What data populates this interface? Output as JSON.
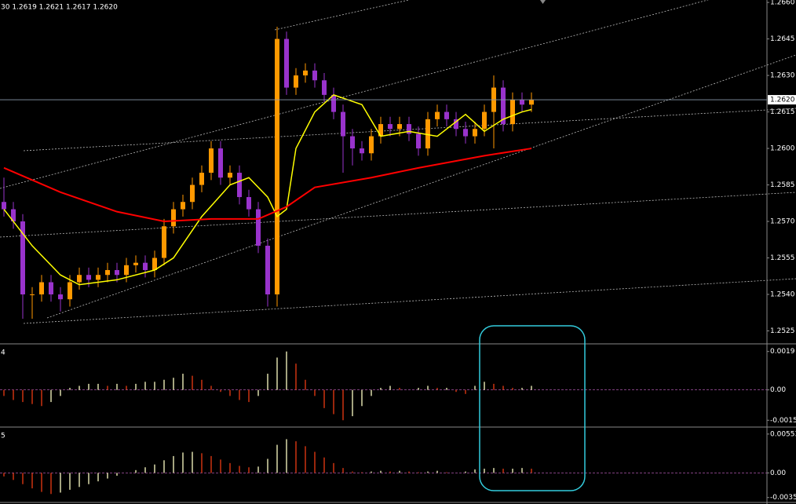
{
  "chart_data": [
    {
      "type": "candlestick",
      "title": "30  1.2619 1.2621 1.2617 1.2620",
      "open": [
        1.2578,
        1.2575,
        1.257,
        1.254,
        1.254,
        1.2545,
        1.254,
        1.2538,
        1.2545,
        1.2548,
        1.2546,
        1.2548,
        1.255,
        1.2548,
        1.2552,
        1.2553,
        1.255,
        1.2555,
        1.2568,
        1.2575,
        1.2578,
        1.2585,
        1.259,
        1.26,
        1.2588,
        1.259,
        1.258,
        1.2575,
        1.256,
        1.254,
        1.2645,
        1.2625,
        1.263,
        1.2632,
        1.2628,
        1.2622,
        1.2615,
        1.2605,
        1.26,
        1.2598,
        1.2605,
        1.261,
        1.2608,
        1.261,
        1.2606,
        1.26,
        1.2612,
        1.2615,
        1.2612,
        1.2608,
        1.2605,
        1.2608,
        1.2615,
        1.2625,
        1.261,
        1.262,
        1.2618
      ],
      "high": [
        1.2588,
        1.2578,
        1.2573,
        1.2543,
        1.2548,
        1.2548,
        1.2543,
        1.2548,
        1.2551,
        1.2551,
        1.2551,
        1.2553,
        1.2553,
        1.2555,
        1.2556,
        1.2556,
        1.2558,
        1.2571,
        1.2578,
        1.2581,
        1.2588,
        1.2593,
        1.2603,
        1.2603,
        1.2593,
        1.2593,
        1.2583,
        1.2578,
        1.2563,
        1.265,
        1.2648,
        1.2633,
        1.2635,
        1.2635,
        1.2631,
        1.2625,
        1.2618,
        1.2608,
        1.2603,
        1.2608,
        1.2613,
        1.2613,
        1.2613,
        1.2613,
        1.2609,
        1.2615,
        1.2618,
        1.2618,
        1.2615,
        1.2611,
        1.2611,
        1.2618,
        1.263,
        1.2628,
        1.2623,
        1.2623,
        1.2623
      ],
      "low": [
        1.2572,
        1.2567,
        1.253,
        1.253,
        1.2537,
        1.2537,
        1.2533,
        1.2535,
        1.2542,
        1.2543,
        1.2543,
        1.2545,
        1.2545,
        1.2545,
        1.2549,
        1.2547,
        1.2547,
        1.2552,
        1.2565,
        1.2572,
        1.2575,
        1.2582,
        1.2587,
        1.2585,
        1.2585,
        1.2577,
        1.2572,
        1.2557,
        1.2535,
        1.2535,
        1.2622,
        1.2622,
        1.2627,
        1.2625,
        1.2619,
        1.2612,
        1.259,
        1.2593,
        1.2595,
        1.2595,
        1.2602,
        1.2605,
        1.2605,
        1.2603,
        1.2597,
        1.2597,
        1.2609,
        1.2609,
        1.2605,
        1.2602,
        1.2602,
        1.2605,
        1.26,
        1.2607,
        1.2607,
        1.2615,
        1.2615
      ],
      "close": [
        1.2575,
        1.257,
        1.254,
        1.254,
        1.2545,
        1.254,
        1.2538,
        1.2545,
        1.2548,
        1.2546,
        1.2548,
        1.255,
        1.2548,
        1.2552,
        1.2553,
        1.255,
        1.2555,
        1.2568,
        1.2575,
        1.2578,
        1.2585,
        1.259,
        1.26,
        1.2588,
        1.259,
        1.258,
        1.2575,
        1.256,
        1.254,
        1.2645,
        1.2625,
        1.263,
        1.2632,
        1.2628,
        1.2622,
        1.2615,
        1.2605,
        1.26,
        1.2598,
        1.2605,
        1.261,
        1.2608,
        1.261,
        1.2606,
        1.26,
        1.2612,
        1.2615,
        1.2612,
        1.2608,
        1.2605,
        1.2608,
        1.2615,
        1.2625,
        1.261,
        1.262,
        1.2618,
        1.262
      ],
      "up_color": "#ff9900",
      "down_color": "#9933cc",
      "lines": [
        {
          "color": "#ffff00",
          "x": [
            0,
            3,
            6,
            8,
            12,
            16,
            18,
            21,
            24,
            26,
            28,
            29,
            30,
            31,
            33,
            35,
            38,
            40,
            43,
            46,
            49,
            51,
            53,
            55,
            56
          ],
          "values": [
            1.2575,
            1.256,
            1.2548,
            1.2544,
            1.2546,
            1.255,
            1.2555,
            1.2572,
            1.2585,
            1.2588,
            1.258,
            1.2572,
            1.2575,
            1.26,
            1.2615,
            1.2622,
            1.2618,
            1.2605,
            1.2607,
            1.2605,
            1.2614,
            1.2607,
            1.2612,
            1.2615,
            1.2616
          ]
        },
        {
          "color": "#ff0000",
          "x": [
            0,
            6,
            12,
            17,
            22,
            27,
            30,
            33,
            39,
            44,
            51,
            56
          ],
          "values": [
            1.2592,
            1.2582,
            1.2574,
            1.257,
            1.2571,
            1.2571,
            1.2576,
            1.2584,
            1.2588,
            1.2592,
            1.2597,
            1.26
          ]
        }
      ],
      "current_price": {
        "value": 1.262,
        "label": "1.2620"
      },
      "ylim": [
        1.252,
        1.2661
      ],
      "yticks": [
        1.2525,
        {
          "value": 1.254,
          "label": "1.2540"
        },
        1.2555,
        {
          "value": 1.257,
          "label": "1.2570"
        },
        1.2585,
        {
          "value": 1.26,
          "label": "1.2600"
        },
        1.2615,
        {
          "value": 1.263,
          "label": "1.2630"
        },
        1.2645,
        {
          "value": 1.266,
          "label": "1.2660"
        }
      ]
    },
    {
      "type": "bar",
      "label": "4",
      "values": [
        -0.0003,
        -0.0005,
        -0.0006,
        -0.0007,
        -0.0008,
        -0.0006,
        -0.0003,
        0.0001,
        0.0002,
        0.0003,
        0.0003,
        0.0002,
        0.0003,
        0.0002,
        0.0003,
        0.0004,
        0.0004,
        0.0005,
        0.0006,
        0.0008,
        0.0007,
        0.0005,
        0.0002,
        -0.0001,
        -0.0003,
        -0.0005,
        -0.0006,
        -0.0003,
        0.0008,
        0.0016,
        0.0019,
        0.0013,
        0.0005,
        -0.0003,
        -0.0009,
        -0.0012,
        -0.0015,
        -0.0013,
        -0.0008,
        -0.0003,
        0.0001,
        0.0002,
        0.0001,
        0,
        0.0001,
        0.0002,
        0.0001,
        0.0001,
        -0.0001,
        -0.0002,
        0.0002,
        0.0004,
        0.0003,
        0.0002,
        0.0001,
        0.0001,
        0.0002
      ],
      "up_color": "#dcdcaa",
      "down_color": "#cc3311",
      "ylim": [
        -0.0018,
        0.0022
      ],
      "yticks": [
        0.0019,
        {
          "value": 0,
          "label": "0.00"
        },
        -0.0015
      ]
    },
    {
      "type": "bar",
      "label": "5",
      "values": [
        -0.0005,
        -0.001,
        -0.0016,
        -0.0022,
        -0.0027,
        -0.003,
        -0.0028,
        -0.0024,
        -0.002,
        -0.0016,
        -0.0012,
        -0.0008,
        -0.0004,
        0,
        0.0004,
        0.0008,
        0.0012,
        0.0018,
        0.0024,
        0.0029,
        0.003,
        0.0028,
        0.0024,
        0.0019,
        0.0014,
        0.001,
        0.0008,
        0.0009,
        0.002,
        0.004,
        0.0048,
        0.0045,
        0.0038,
        0.003,
        0.0022,
        0.0014,
        0.0007,
        0.0002,
        0.0001,
        0.0002,
        0.0003,
        0.0002,
        0.0003,
        0.0002,
        0.0001,
        0.0002,
        0.0003,
        0.0001,
        0,
        0.0002,
        0.0005,
        0.0006,
        0.0007,
        0.0006,
        0.0006,
        0.0007,
        0.0006
      ],
      "up_color": "#dcdcaa",
      "down_color": "#cc3311",
      "ylim": [
        -0.0042,
        0.0063
      ],
      "yticks": [
        0.00553,
        {
          "value": 0,
          "label": "0.00"
        },
        -0.0035
      ]
    }
  ]
}
